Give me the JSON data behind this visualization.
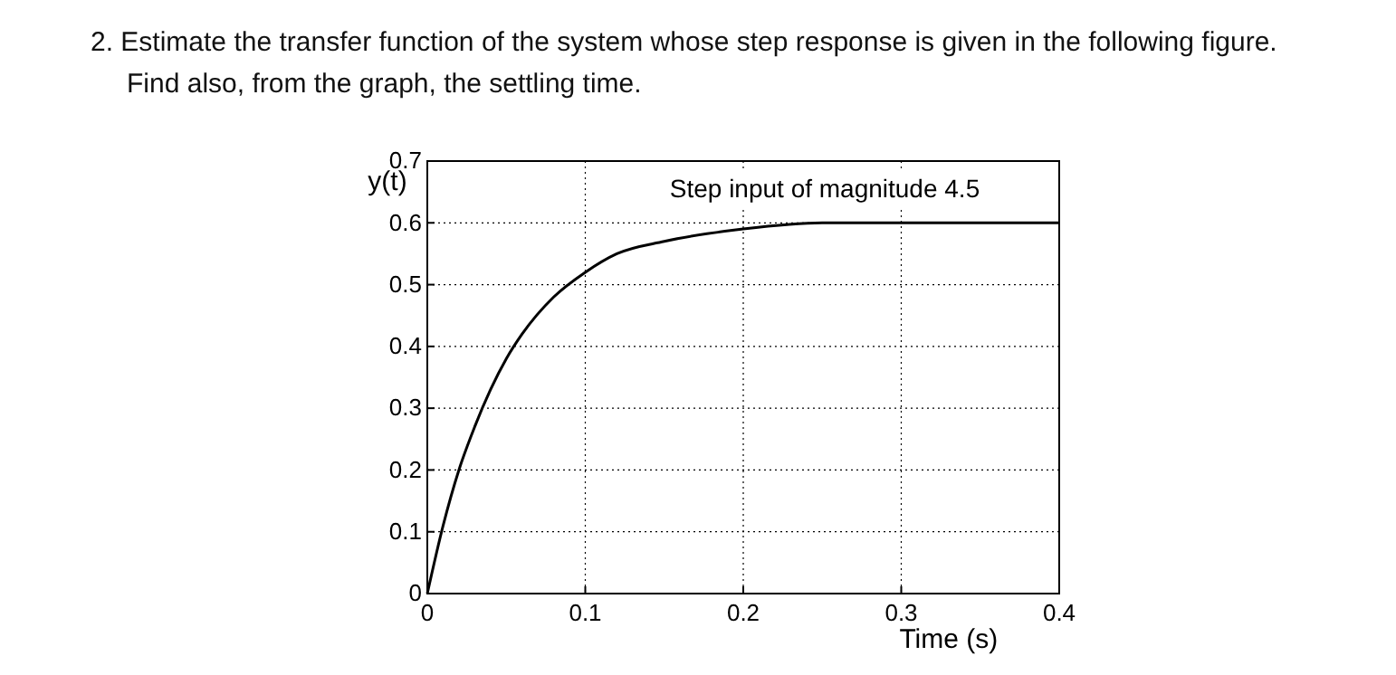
{
  "chart_data": {
    "type": "line",
    "annotations": [
      "2.  Estimate the transfer function of the system whose step response is given in the following figure. Find also, from the graph, the settling time.",
      "Step input of magnitude 4.5"
    ],
    "xlabel": "Time (s)",
    "ylabel": "y(t)",
    "x": [
      0,
      0.01,
      0.02,
      0.03,
      0.04,
      0.05,
      0.06,
      0.08,
      0.1,
      0.12,
      0.15,
      0.2,
      0.25,
      0.3,
      0.35,
      0.4
    ],
    "series": [
      {
        "color": "#000000",
        "values": [
          0,
          0.11,
          0.2,
          0.27,
          0.33,
          0.38,
          0.42,
          0.48,
          0.52,
          0.55,
          0.57,
          0.59,
          0.6,
          0.6,
          0.6,
          0.6
        ]
      }
    ],
    "xlim": [
      0,
      0.4
    ],
    "ylim": [
      0,
      0.7
    ],
    "xticks": [
      0,
      0.1,
      0.2,
      0.3,
      0.4
    ],
    "yticks": [
      0,
      0.1,
      0.2,
      0.3,
      0.4,
      0.5,
      0.6,
      0.7
    ],
    "grid": true,
    "line_style": "solid"
  }
}
